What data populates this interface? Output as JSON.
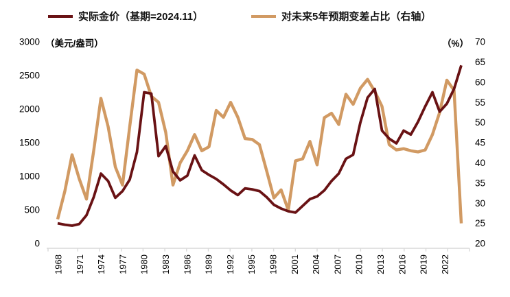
{
  "chart_data": {
    "type": "line",
    "title": "",
    "background": "#ffffff",
    "axis_line_color": "#d9d9d9",
    "text_color": "#000000",
    "years": [
      1968,
      1969,
      1970,
      1971,
      1972,
      1973,
      1974,
      1975,
      1976,
      1977,
      1978,
      1979,
      1980,
      1981,
      1982,
      1983,
      1984,
      1985,
      1986,
      1987,
      1988,
      1989,
      1990,
      1991,
      1992,
      1993,
      1994,
      1995,
      1996,
      1997,
      1998,
      1999,
      2000,
      2001,
      2002,
      2003,
      2004,
      2005,
      2006,
      2007,
      2008,
      2009,
      2010,
      2011,
      2012,
      2013,
      2014,
      2015,
      2016,
      2017,
      2018,
      2019,
      2020,
      2021,
      2022,
      2023,
      2024
    ],
    "left_axis": {
      "unit_label": "（美元/盎司）",
      "ticks": [
        0,
        500,
        1000,
        1500,
        2000,
        2500,
        3000
      ],
      "range": [
        0,
        3000
      ]
    },
    "right_axis": {
      "unit_label": "（%）",
      "ticks": [
        20,
        25,
        30,
        35,
        40,
        45,
        50,
        55,
        60,
        65,
        70
      ],
      "range": [
        20,
        70
      ]
    },
    "x_axis": {
      "tick_labels": [
        "1968",
        "1971",
        "1974",
        "1977",
        "1980",
        "1983",
        "1986",
        "1989",
        "1992",
        "1995",
        "1998",
        "2001",
        "2004",
        "2007",
        "2010",
        "2013",
        "2016",
        "2019",
        "2022"
      ],
      "label_interval_years": 3
    },
    "legend_position": "top",
    "grid": false,
    "series": [
      {
        "name": "实际金价（基期=2024.11）",
        "axis": "left",
        "color": "#691214",
        "line_width": 3.8,
        "values": [
          300,
          280,
          265,
          290,
          420,
          690,
          1040,
          930,
          680,
          780,
          950,
          1360,
          2250,
          2230,
          1300,
          1450,
          1070,
          940,
          1010,
          1310,
          1090,
          1020,
          960,
          880,
          790,
          720,
          820,
          805,
          780,
          690,
          575,
          520,
          480,
          460,
          560,
          660,
          700,
          790,
          930,
          1040,
          1260,
          1320,
          1800,
          2170,
          2300,
          1680,
          1560,
          1490,
          1680,
          1620,
          1810,
          2040,
          2250,
          1960,
          2080,
          2300,
          2650
        ]
      },
      {
        "name": "对未来5年预期变差占比（右轴）",
        "axis": "right",
        "color": "#d19a63",
        "line_width": 4.4,
        "values": [
          26,
          33,
          42,
          36,
          31,
          43,
          56,
          49,
          39,
          34.5,
          49,
          63,
          62,
          56.5,
          55,
          47.5,
          34.5,
          40,
          43,
          47,
          43,
          44,
          53,
          51.3,
          55,
          51.3,
          46,
          45.8,
          44.5,
          38,
          31.3,
          33.3,
          28.3,
          40.5,
          41,
          45.3,
          39.5,
          51.2,
          52.3,
          49.5,
          57,
          54.5,
          58.5,
          60.7,
          57.7,
          54,
          44.5,
          43.2,
          43.5,
          43,
          42.7,
          43.2,
          47,
          52.5,
          60.5,
          58,
          25
        ]
      }
    ]
  }
}
